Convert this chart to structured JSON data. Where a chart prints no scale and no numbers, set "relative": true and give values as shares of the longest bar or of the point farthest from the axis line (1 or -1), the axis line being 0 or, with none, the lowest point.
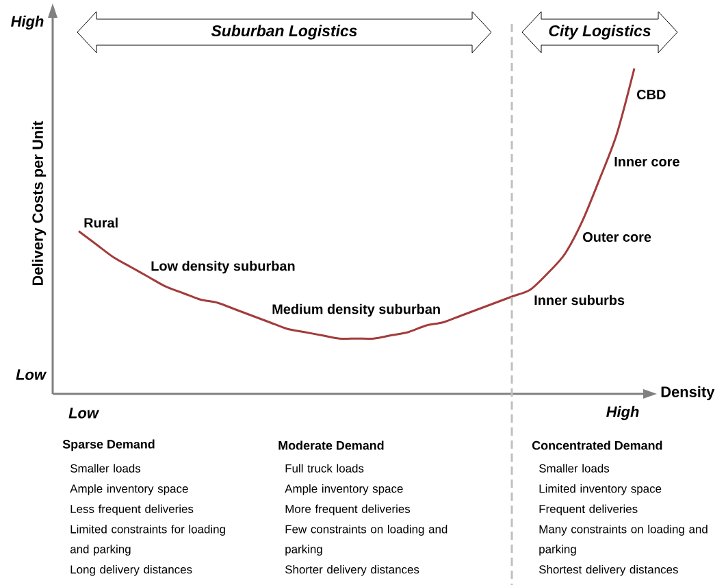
{
  "chart_data": {
    "type": "line",
    "relative": true,
    "xlabel": "Density",
    "ylabel": "Delivery Costs per Unit",
    "color": "#a33b3b",
    "marker": "none",
    "categories": [
      null,
      null,
      null,
      null,
      null,
      null,
      null,
      null,
      null,
      null,
      null,
      null,
      null,
      null,
      null,
      null,
      null,
      null,
      null,
      null,
      null,
      null,
      null,
      null,
      null,
      null,
      null,
      null,
      null,
      null,
      null,
      null,
      null
    ],
    "values": [
      0.5,
      0.46,
      0.42,
      0.39,
      0.36,
      0.33,
      0.31,
      0.29,
      0.28,
      0.26,
      0.24,
      0.22,
      0.2,
      0.19,
      0.18,
      0.17,
      0.17,
      0.17,
      0.18,
      0.19,
      0.21,
      0.22,
      0.24,
      0.26,
      0.28,
      0.3,
      0.32,
      0.37,
      0.43,
      0.53,
      0.66,
      0.8,
      1
    ],
    "annotations": [
      "Suburban Logistics",
      "City Logistics",
      "High",
      "Low",
      "Low",
      "High",
      "Rural",
      "Low density suburban",
      "Medium density suburban",
      "Inner suburbs",
      "Outer core",
      "Inner core",
      "CBD",
      "Sparse Demand",
      "Smaller loads",
      "Ample inventory space",
      "Less frequent deliveries",
      "Limited constraints for loading and parking",
      "Long delivery distances",
      "Moderate Demand",
      "Full truck loads",
      "Ample inventory space",
      "More frequent deliveries",
      "Few constraints on loading and parking",
      "Shorter delivery distances",
      "Concentrated Demand",
      "Smaller loads",
      "Limited inventory space",
      "Frequent deliveries",
      "Many constraints on loading and parking",
      "Shortest delivery distances"
    ]
  }
}
